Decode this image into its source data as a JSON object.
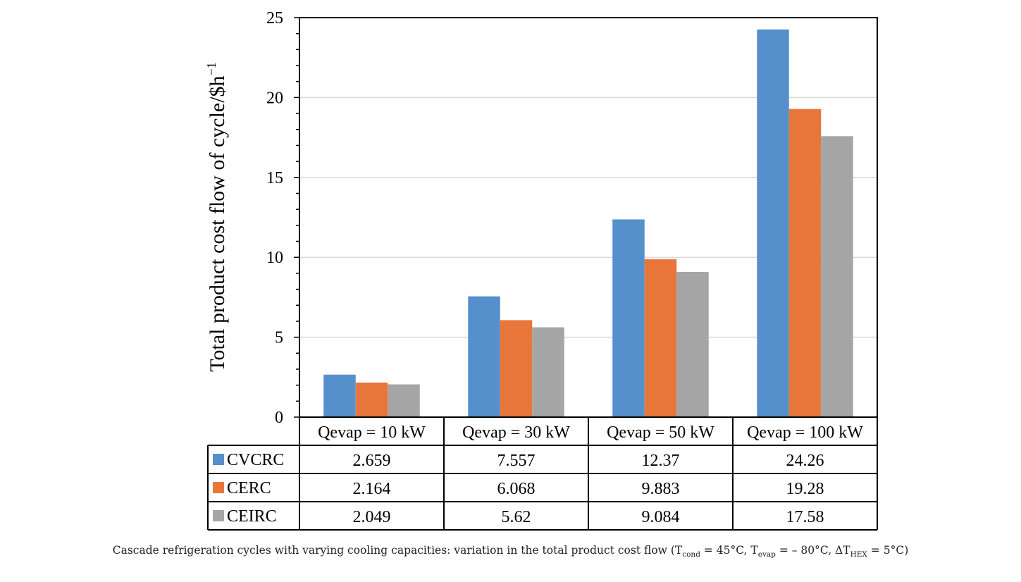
{
  "chart_data": {
    "type": "bar",
    "categories": [
      "Qevap = 10 kW",
      "Qevap = 30 kW",
      "Qevap = 50 kW",
      "Qevap = 100 kW"
    ],
    "series": [
      {
        "name": "CVCRC",
        "color": "#5590cc",
        "values": [
          2.659,
          7.557,
          12.37,
          24.26
        ],
        "labels": [
          "2.659",
          "7.557",
          "12.37",
          "24.26"
        ]
      },
      {
        "name": "CERC",
        "color": "#e8763a",
        "values": [
          2.164,
          6.068,
          9.883,
          19.28
        ],
        "labels": [
          "2.164",
          "6.068",
          "9.883",
          "19.28"
        ]
      },
      {
        "name": "CEIRC",
        "color": "#a5a5a5",
        "values": [
          2.049,
          5.62,
          9.084,
          17.58
        ],
        "labels": [
          "2.049",
          "5.62",
          "9.084",
          "17.58"
        ]
      }
    ],
    "ylim": [
      0,
      25
    ],
    "yticks": [
      0,
      5,
      10,
      15,
      20,
      25
    ],
    "ylabel_main": "Total product cost flow of cycle/$h",
    "ylabel_sup": "−1",
    "gridlines": true,
    "data_table": true
  },
  "caption": {
    "text_main": "Cascade refrigeration cycles with varying cooling capacities: variation in the total product cost flow (T",
    "sub_cond": "cond",
    "text_2": " = 45°C, T",
    "sub_evap": "evap",
    "text_3": " = – 80°C, ΔT",
    "sub_hex": "HEX",
    "text_4": " = 5°C)"
  }
}
